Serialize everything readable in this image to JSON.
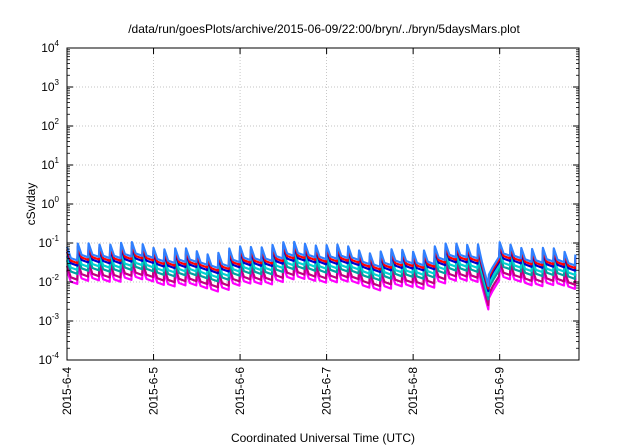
{
  "chart_data": {
    "type": "line",
    "title": "/data/run/goesPlots/archive/2015-06-09/22:00/bryn/../bryn/5daysMars.plot",
    "xlabel": "Coordinated Universal Time (UTC)",
    "ylabel": "cSv/day",
    "yscale": "log",
    "ylim": [
      0.0001,
      10000
    ],
    "y_ticks": [
      {
        "base": "10",
        "exp": "-4",
        "value": 0.0001
      },
      {
        "base": "10",
        "exp": "-3",
        "value": 0.001
      },
      {
        "base": "10",
        "exp": "-2",
        "value": 0.01
      },
      {
        "base": "10",
        "exp": "-1",
        "value": 0.1
      },
      {
        "base": "10",
        "exp": "0",
        "value": 1
      },
      {
        "base": "10",
        "exp": "1",
        "value": 10
      },
      {
        "base": "10",
        "exp": "2",
        "value": 100
      },
      {
        "base": "10",
        "exp": "3",
        "value": 1000
      },
      {
        "base": "10",
        "exp": "4",
        "value": 10000
      }
    ],
    "x_ticks": [
      "2015-6-4",
      "2015-6-5",
      "2015-6-6",
      "2015-6-7",
      "2015-6-8",
      "2015-6-9"
    ],
    "xlim": [
      "2015-06-04T00:00",
      "2015-06-09T22:00"
    ],
    "grid": true,
    "series": [
      {
        "color": "#ff00ff",
        "baseline": 0.0105
      },
      {
        "color": "#c00080",
        "baseline": 0.0135
      },
      {
        "color": "#00a0a0",
        "baseline": 0.019
      },
      {
        "color": "#00d0d0",
        "baseline": 0.024
      },
      {
        "color": "#0000cc",
        "baseline": 0.031
      },
      {
        "color": "#ff0000",
        "baseline": 0.036
      },
      {
        "color": "#3080ff",
        "baseline": 0.042
      }
    ]
  }
}
